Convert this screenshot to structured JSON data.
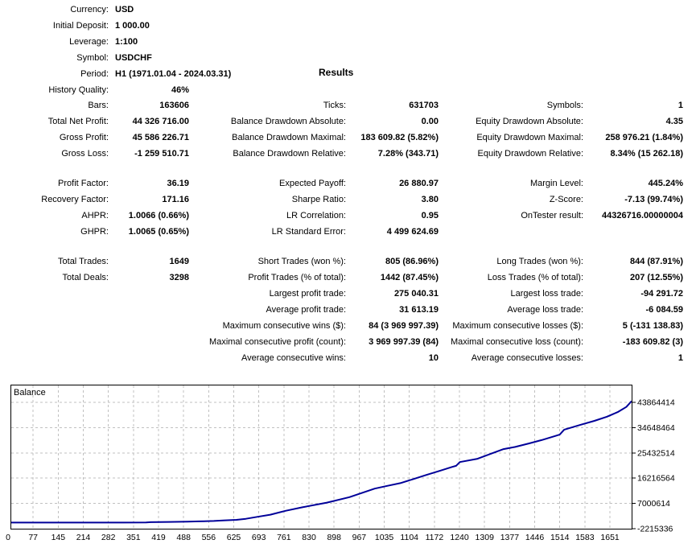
{
  "report": {
    "results_title": "Results",
    "info_rows": [
      {
        "label": "Currency:",
        "value": "USD"
      },
      {
        "label": "Initial Deposit:",
        "value": "1 000.00"
      },
      {
        "label": "Leverage:",
        "value": "1:100"
      },
      {
        "label": "Symbol:",
        "value": "USDCHF"
      },
      {
        "label": "Period:",
        "value": "H1 (1971.01.04 - 2024.03.31)"
      },
      {
        "label": "History Quality:",
        "value": "46%",
        "value_align": "right"
      }
    ],
    "stat_rows": [
      {
        "cells": [
          {
            "label": "Bars:",
            "value": "163606"
          },
          {
            "label": "Ticks:",
            "value": "631703"
          },
          {
            "label": "Symbols:",
            "value": "1"
          }
        ]
      },
      {
        "cells": [
          {
            "label": "Total Net Profit:",
            "value": "44 326 716.00"
          },
          {
            "label": "Balance Drawdown Absolute:",
            "value": "0.00"
          },
          {
            "label": "Equity Drawdown Absolute:",
            "value": "4.35"
          }
        ]
      },
      {
        "cells": [
          {
            "label": "Gross Profit:",
            "value": "45 586 226.71"
          },
          {
            "label": "Balance Drawdown Maximal:",
            "value": "183 609.82 (5.82%)"
          },
          {
            "label": "Equity Drawdown Maximal:",
            "value": "258 976.21 (1.84%)"
          }
        ]
      },
      {
        "cells": [
          {
            "label": "Gross Loss:",
            "value": "-1 259 510.71"
          },
          {
            "label": "Balance Drawdown Relative:",
            "value": "7.28% (343.71)"
          },
          {
            "label": "Equity Drawdown Relative:",
            "value": "8.34% (15 262.18)"
          }
        ]
      },
      {
        "spacer": true
      },
      {
        "cells": [
          {
            "label": "Profit Factor:",
            "value": "36.19"
          },
          {
            "label": "Expected Payoff:",
            "value": "26 880.97"
          },
          {
            "label": "Margin Level:",
            "value": "445.24%"
          }
        ]
      },
      {
        "cells": [
          {
            "label": "Recovery Factor:",
            "value": "171.16"
          },
          {
            "label": "Sharpe Ratio:",
            "value": "3.80"
          },
          {
            "label": "Z-Score:",
            "value": "-7.13 (99.74%)"
          }
        ]
      },
      {
        "cells": [
          {
            "label": "AHPR:",
            "value": "1.0066 (0.66%)"
          },
          {
            "label": "LR Correlation:",
            "value": "0.95"
          },
          {
            "label": "OnTester result:",
            "value": "44326716.00000004"
          }
        ]
      },
      {
        "cells": [
          {
            "label": "GHPR:",
            "value": "1.0065 (0.65%)"
          },
          {
            "label": "LR Standard Error:",
            "value": "4 499 624.69"
          },
          null
        ]
      },
      {
        "spacer": true
      },
      {
        "cells": [
          {
            "label": "Total Trades:",
            "value": "1649"
          },
          {
            "label": "Short Trades (won %):",
            "value": "805 (86.96%)"
          },
          {
            "label": "Long Trades (won %):",
            "value": "844 (87.91%)"
          }
        ]
      },
      {
        "cells": [
          {
            "label": "Total Deals:",
            "value": "3298"
          },
          {
            "label": "Profit Trades (% of total):",
            "value": "1442 (87.45%)"
          },
          {
            "label": "Loss Trades (% of total):",
            "value": "207 (12.55%)"
          }
        ]
      },
      {
        "cells": [
          null,
          {
            "label": "Largest profit trade:",
            "value": "275 040.31"
          },
          {
            "label": "Largest loss trade:",
            "value": "-94 291.72"
          }
        ]
      },
      {
        "cells": [
          null,
          {
            "label": "Average profit trade:",
            "value": "31 613.19"
          },
          {
            "label": "Average loss trade:",
            "value": "-6 084.59"
          }
        ]
      },
      {
        "cells": [
          null,
          {
            "label": "Maximum consecutive wins ($):",
            "value": "84 (3 969 997.39)"
          },
          {
            "label": "Maximum consecutive losses ($):",
            "value": "5 (-131 138.83)"
          }
        ]
      },
      {
        "cells": [
          null,
          {
            "label": "Maximal consecutive profit (count):",
            "value": "3 969 997.39 (84)"
          },
          {
            "label": "Maximal consecutive loss (count):",
            "value": "-183 609.82 (3)"
          }
        ]
      },
      {
        "cells": [
          null,
          {
            "label": "Average consecutive wins:",
            "value": "10"
          },
          {
            "label": "Average consecutive losses:",
            "value": "1"
          }
        ]
      }
    ]
  },
  "chart_data": {
    "type": "line",
    "title": "Balance",
    "line_color": "#000099",
    "grid_color": "#c0c0c0",
    "border_color": "#000000",
    "x_ticks": [
      0,
      77,
      145,
      214,
      282,
      351,
      419,
      488,
      556,
      625,
      693,
      761,
      830,
      898,
      967,
      1035,
      1104,
      1172,
      1240,
      1309,
      1377,
      1446,
      1514,
      1583,
      1651
    ],
    "y_ticks": [
      43864414,
      34648464,
      25432514,
      16216564,
      7000614,
      -2215336
    ],
    "xlim": [
      0,
      1649
    ],
    "ylim": [
      -2215336,
      50320000
    ],
    "grid": true,
    "legend_position": "top-left-inside",
    "series": [
      {
        "name": "Balance",
        "points": [
          [
            0,
            1000
          ],
          [
            150,
            1500
          ],
          [
            300,
            9000
          ],
          [
            360,
            60000
          ],
          [
            372,
            160000
          ],
          [
            420,
            250000
          ],
          [
            470,
            350000
          ],
          [
            500,
            450000
          ],
          [
            540,
            600000
          ],
          [
            565,
            800000
          ],
          [
            600,
            1000000
          ],
          [
            625,
            1400000
          ],
          [
            655,
            2100000
          ],
          [
            690,
            2900000
          ],
          [
            730,
            4300000
          ],
          [
            775,
            5600000
          ],
          [
            840,
            7300000
          ],
          [
            900,
            9300000
          ],
          [
            967,
            12400000
          ],
          [
            1000,
            13400000
          ],
          [
            1035,
            14400000
          ],
          [
            1070,
            15900000
          ],
          [
            1104,
            17400000
          ],
          [
            1140,
            18900000
          ],
          [
            1172,
            20300000
          ],
          [
            1183,
            20700000
          ],
          [
            1193,
            22100000
          ],
          [
            1240,
            23300000
          ],
          [
            1275,
            25100000
          ],
          [
            1309,
            26800000
          ],
          [
            1340,
            27600000
          ],
          [
            1377,
            28900000
          ],
          [
            1410,
            30100000
          ],
          [
            1446,
            31600000
          ],
          [
            1458,
            32100000
          ],
          [
            1470,
            33900000
          ],
          [
            1514,
            35700000
          ],
          [
            1550,
            37100000
          ],
          [
            1583,
            38600000
          ],
          [
            1612,
            40300000
          ],
          [
            1635,
            42200000
          ],
          [
            1649,
            44326716
          ]
        ]
      }
    ]
  }
}
